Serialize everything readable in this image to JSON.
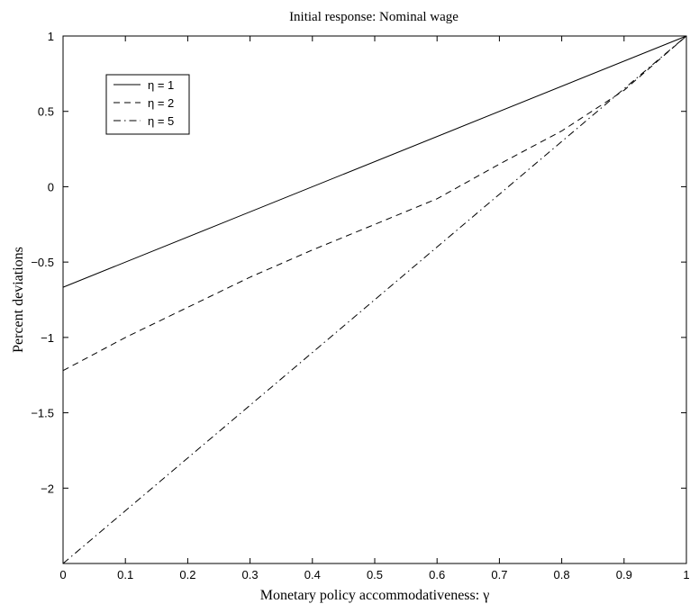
{
  "chart_data": {
    "type": "line",
    "title": "Initial response: Nominal wage",
    "xlabel": "Monetary policy accommodativeness: γ",
    "ylabel": "Percent deviations",
    "xlim": [
      0,
      1
    ],
    "ylim": [
      -2.5,
      1
    ],
    "xticks": [
      0,
      0.1,
      0.2,
      0.3,
      0.4,
      0.5,
      0.6,
      0.7,
      0.8,
      0.9,
      1
    ],
    "xtick_labels": [
      "0",
      "0.1",
      "0.2",
      "0.3",
      "0.4",
      "0.5",
      "0.6",
      "0.7",
      "0.8",
      "0.9",
      "1"
    ],
    "yticks": [
      -2,
      -1.5,
      -1,
      -0.5,
      0,
      0.5,
      1
    ],
    "ytick_labels": [
      "−2",
      "−1.5",
      "−1",
      "−0.5",
      "0",
      "0.5",
      "1"
    ],
    "grid": false,
    "legend_position": "top-left",
    "series": [
      {
        "name": "η = 1",
        "style": "solid",
        "color": "#000000",
        "x": [
          0,
          1
        ],
        "y": [
          -0.667,
          1
        ]
      },
      {
        "name": "η = 2",
        "style": "dashed",
        "color": "#000000",
        "x": [
          0,
          0.1,
          0.2,
          0.3,
          0.4,
          0.5,
          0.6,
          0.7,
          0.8,
          0.9,
          1
        ],
        "y": [
          -1.22,
          -1.0,
          -0.8,
          -0.6,
          -0.42,
          -0.25,
          -0.08,
          0.15,
          0.37,
          0.64,
          1
        ]
      },
      {
        "name": "η = 5",
        "style": "dashdot",
        "color": "#000000",
        "x": [
          0,
          1
        ],
        "y": [
          -2.5,
          1
        ]
      }
    ]
  }
}
